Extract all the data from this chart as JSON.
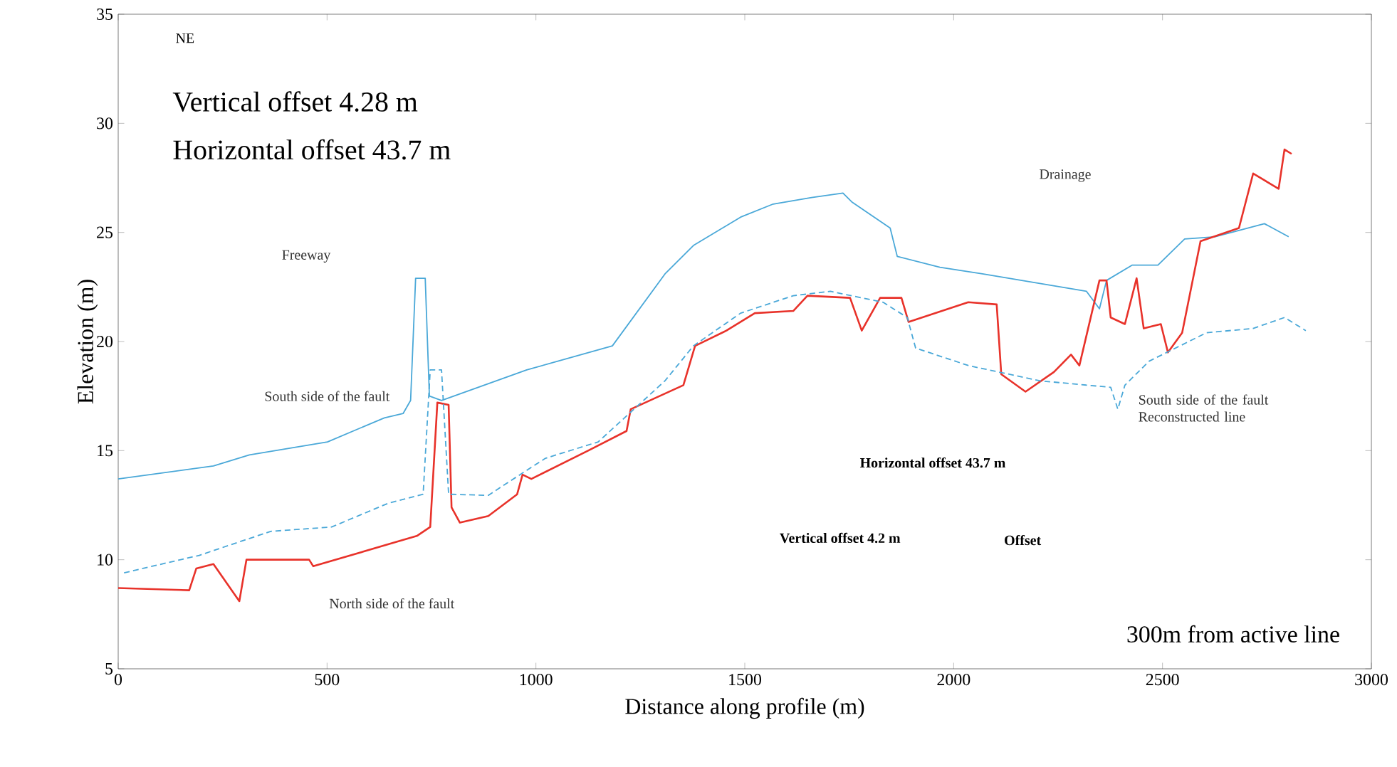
{
  "chart_data": {
    "type": "line",
    "xlabel": "Distance along profile (m)",
    "ylabel": "Elevation (m)",
    "xlim": [
      0,
      3000
    ],
    "xticks": [
      0,
      500,
      1000,
      1500,
      2000,
      2500,
      3000
    ],
    "ylim": [
      5,
      35
    ],
    "yticks": [
      5,
      10,
      15,
      20,
      25,
      30,
      35
    ],
    "legend": false,
    "grid": false,
    "marker": "none",
    "series": [
      {
        "name": "South side of the fault",
        "color": "#4aa8d8",
        "line_style": "solid",
        "x": [
          0,
          228,
          314,
          501,
          637,
          682,
          700,
          712,
          735,
          745,
          774,
          978,
          1183,
          1309,
          1377,
          1490,
          1568,
          1660,
          1735,
          1756,
          1848,
          1865,
          1967,
          2069,
          2318,
          2349,
          2366,
          2427,
          2489,
          2553,
          2625,
          2744,
          2802
        ],
        "values": [
          13.7,
          14.3,
          14.8,
          15.4,
          16.5,
          16.7,
          17.3,
          22.9,
          22.9,
          17.5,
          17.3,
          18.7,
          19.8,
          23.1,
          24.4,
          25.7,
          26.3,
          26.6,
          26.8,
          26.4,
          25.2,
          23.9,
          23.4,
          23.1,
          22.3,
          21.5,
          22.8,
          23.5,
          23.5,
          24.7,
          24.8,
          25.4,
          24.8
        ]
      },
      {
        "name": "North side of the fault",
        "color": "#e8322a",
        "line_style": "solid",
        "x": [
          0,
          170,
          187,
          228,
          290,
          307,
          457,
          467,
          716,
          747,
          764,
          791,
          798,
          818,
          886,
          955,
          968,
          989,
          1125,
          1217,
          1227,
          1353,
          1381,
          1456,
          1524,
          1616,
          1650,
          1752,
          1780,
          1824,
          1875,
          1892,
          2035,
          2103,
          2114,
          2172,
          2240,
          2281,
          2301,
          2349,
          2366,
          2376,
          2410,
          2438,
          2455,
          2496,
          2513,
          2547,
          2591,
          2683,
          2717,
          2778,
          2792,
          2809
        ],
        "values": [
          8.7,
          8.6,
          9.6,
          9.8,
          8.1,
          10.0,
          10.0,
          9.7,
          11.1,
          11.5,
          17.2,
          17.1,
          12.4,
          11.7,
          12.0,
          13.0,
          13.9,
          13.7,
          15.0,
          15.9,
          16.9,
          18.0,
          19.8,
          20.5,
          21.3,
          21.4,
          22.1,
          22.0,
          20.5,
          22.0,
          22.0,
          20.9,
          21.8,
          21.7,
          18.5,
          17.7,
          18.6,
          19.4,
          18.9,
          22.8,
          22.8,
          21.1,
          20.8,
          22.9,
          20.6,
          20.8,
          19.5,
          20.4,
          24.6,
          25.2,
          27.7,
          27.0,
          28.8,
          28.6
        ]
      },
      {
        "name": "South side of the fault Reconstructed line",
        "color": "#4aa8d8",
        "line_style": "dashed",
        "x": [
          14,
          194,
          365,
          511,
          648,
          730,
          747,
          774,
          791,
          886,
          978,
          1023,
          1149,
          1309,
          1377,
          1490,
          1616,
          1705,
          1831,
          1889,
          1909,
          2035,
          2206,
          2376,
          2393,
          2410,
          2468,
          2605,
          2717,
          2792,
          2843
        ],
        "values": [
          9.4,
          10.2,
          11.3,
          11.5,
          12.6,
          13.0,
          18.7,
          18.7,
          13.0,
          12.95,
          14.1,
          14.65,
          15.4,
          18.2,
          19.8,
          21.3,
          22.1,
          22.3,
          21.8,
          21.1,
          19.7,
          18.9,
          18.2,
          17.9,
          16.9,
          18.0,
          19.1,
          20.4,
          20.6,
          21.1,
          20.5
        ]
      }
    ],
    "annotations": [
      "NE",
      "Vertical offset 4.28 m",
      "Horizontal offset 43.7 m",
      "Freeway",
      "Drainage",
      "Horizontal offset 43.7 m",
      "Vertical offset 4.2 m",
      "Offset",
      "300m from active line"
    ]
  }
}
